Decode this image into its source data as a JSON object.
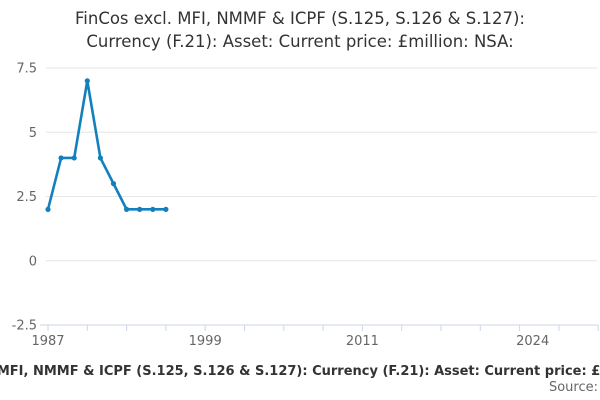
{
  "title": {
    "line1": "FinCos excl. MFI, NMMF & ICPF (S.125, S.126 & S.127):",
    "line2": "Currency (F.21): Asset: Current price: £million: NSA:"
  },
  "chart_data": {
    "type": "line",
    "title": "FinCos excl. MFI, NMMF & ICPF (S.125, S.126 & S.127): Currency (F.21): Asset: Current price: £million: NSA:",
    "x": [
      1987,
      1988,
      1989,
      1990,
      1991,
      1992,
      1993,
      1994,
      1995,
      1996
    ],
    "series": [
      {
        "name": "FinCos excl. MFI, NMMF & ICPF (S.125, S.126 & S.127): Currency (F.21): Asset: Current price: £million: NSA:",
        "values": [
          2,
          4,
          4,
          7,
          4,
          3,
          2,
          2,
          2,
          2
        ],
        "color": "#1380BE"
      }
    ],
    "xlabel": "",
    "ylabel": "",
    "ylim": [
      -2.5,
      7.5
    ],
    "yticks": [
      7.5,
      5,
      2.5,
      0,
      -2.5
    ],
    "ytick_labels": [
      "7.5",
      "5",
      "2.5",
      "0",
      "-2.5"
    ],
    "xtick_years_labeled": [
      1987,
      1999,
      2011,
      2024
    ],
    "xtick_labels": [
      "1987",
      "1999",
      "2011",
      "2024"
    ],
    "xlim": [
      1987,
      2029
    ],
    "minor_tick_interval_years": 3,
    "grid": "horizontal",
    "legend_position": "bottom",
    "marker": "circle"
  },
  "footer": {
    "legend_label": "FinCos excl. MFI, NMMF & ICPF (S.125, S.126 & S.127): Currency (F.21): Asset: Current price: £million: NSA:",
    "source_label": "Source:"
  },
  "colors": {
    "line": "#1380BE",
    "grid": "#e6e6e6",
    "axis": "#ccd6eb",
    "tick_text": "#666666",
    "title_text": "#333333",
    "legend_text": "#333333",
    "source_text": "#666666"
  }
}
